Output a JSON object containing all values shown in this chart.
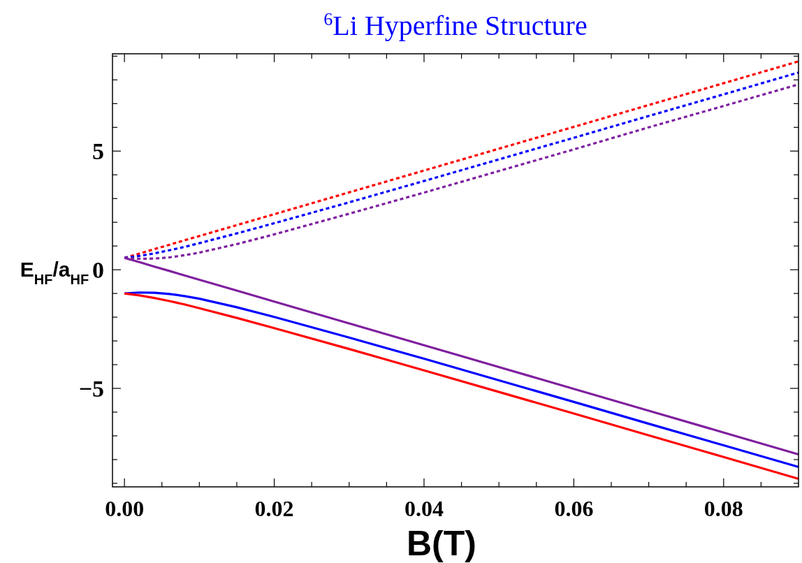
{
  "chart_data": {
    "type": "line",
    "title": "$^{6}$Li Hyperfine Structure",
    "xlabel": "B(T)",
    "ylabel": "E$_{HF}$/a$_{HF}$",
    "x": [
      0,
      0.002,
      0.004,
      0.006,
      0.008,
      0.01,
      0.015,
      0.02,
      0.03,
      0.04,
      0.05,
      0.06,
      0.07,
      0.08,
      0.09
    ],
    "series": [
      {
        "color": "#ff0000",
        "line_style": "dotted",
        "values": [
          0.5,
          0.68,
          0.87,
          1.05,
          1.24,
          1.42,
          1.88,
          2.34,
          3.26,
          4.18,
          5.1,
          6.02,
          6.94,
          7.86,
          8.78
        ]
      },
      {
        "color": "#0000ff",
        "line_style": "dotted",
        "values": [
          0.5,
          0.58,
          0.69,
          0.82,
          0.96,
          1.12,
          1.53,
          1.96,
          2.84,
          3.74,
          4.65,
          5.56,
          6.48,
          7.39,
          8.31
        ]
      },
      {
        "color": "#7f1f9f",
        "line_style": "dotted",
        "values": [
          0.5,
          0.46,
          0.47,
          0.52,
          0.61,
          0.72,
          1.08,
          1.49,
          2.36,
          3.25,
          4.16,
          5.07,
          6.0,
          6.9,
          7.81
        ]
      },
      {
        "color": "#7f1f9f",
        "line_style": "solid",
        "values": [
          0.5,
          0.32,
          0.13,
          -0.05,
          -0.24,
          -0.42,
          -0.88,
          -1.34,
          -2.26,
          -3.18,
          -4.1,
          -5.02,
          -5.94,
          -6.86,
          -7.78
        ]
      },
      {
        "color": "#0000ff",
        "line_style": "solid",
        "values": [
          -1,
          -0.96,
          -0.97,
          -1.02,
          -1.11,
          -1.22,
          -1.58,
          -1.99,
          -2.86,
          -3.75,
          -4.66,
          -5.57,
          -6.49,
          -7.4,
          -8.31
        ]
      },
      {
        "color": "#ff0000",
        "line_style": "solid",
        "values": [
          -1,
          -1.08,
          -1.19,
          -1.32,
          -1.46,
          -1.62,
          -2.03,
          -2.46,
          -3.34,
          -4.24,
          -5.15,
          -6.06,
          -6.98,
          -7.89,
          -8.81
        ]
      }
    ],
    "xlim": [
      -0.0016,
      0.09
    ],
    "ylim": [
      -9.15,
      9.1
    ],
    "xticks": [
      {
        "value": 0,
        "label": "0.00"
      },
      {
        "value": 0.005,
        "label": null
      },
      {
        "value": 0.01,
        "label": null
      },
      {
        "value": 0.015,
        "label": null
      },
      {
        "value": 0.02,
        "label": "0.02"
      },
      {
        "value": 0.025,
        "label": null
      },
      {
        "value": 0.03,
        "label": null
      },
      {
        "value": 0.035,
        "label": null
      },
      {
        "value": 0.04,
        "label": "0.04"
      },
      {
        "value": 0.045,
        "label": null
      },
      {
        "value": 0.05,
        "label": null
      },
      {
        "value": 0.055,
        "label": null
      },
      {
        "value": 0.06,
        "label": "0.06"
      },
      {
        "value": 0.065,
        "label": null
      },
      {
        "value": 0.07,
        "label": null
      },
      {
        "value": 0.075,
        "label": null
      },
      {
        "value": 0.08,
        "label": "0.08"
      },
      {
        "value": 0.085,
        "label": null
      }
    ],
    "yticks": [
      {
        "value": -9,
        "label": null
      },
      {
        "value": -8,
        "label": null
      },
      {
        "value": -7,
        "label": null
      },
      {
        "value": -6,
        "label": null
      },
      {
        "value": -5,
        "label": "−5"
      },
      {
        "value": -4,
        "label": null
      },
      {
        "value": -3,
        "label": null
      },
      {
        "value": -2,
        "label": null
      },
      {
        "value": -1,
        "label": null
      },
      0,
      {
        "value": 1,
        "label": null
      },
      {
        "value": 2,
        "label": null
      },
      {
        "value": 3,
        "label": null
      },
      {
        "value": 4,
        "label": null
      },
      5,
      {
        "value": 6,
        "label": null
      },
      {
        "value": 7,
        "label": null
      },
      {
        "value": 8,
        "label": null
      },
      {
        "value": 9,
        "label": null
      }
    ],
    "grid": false
  }
}
